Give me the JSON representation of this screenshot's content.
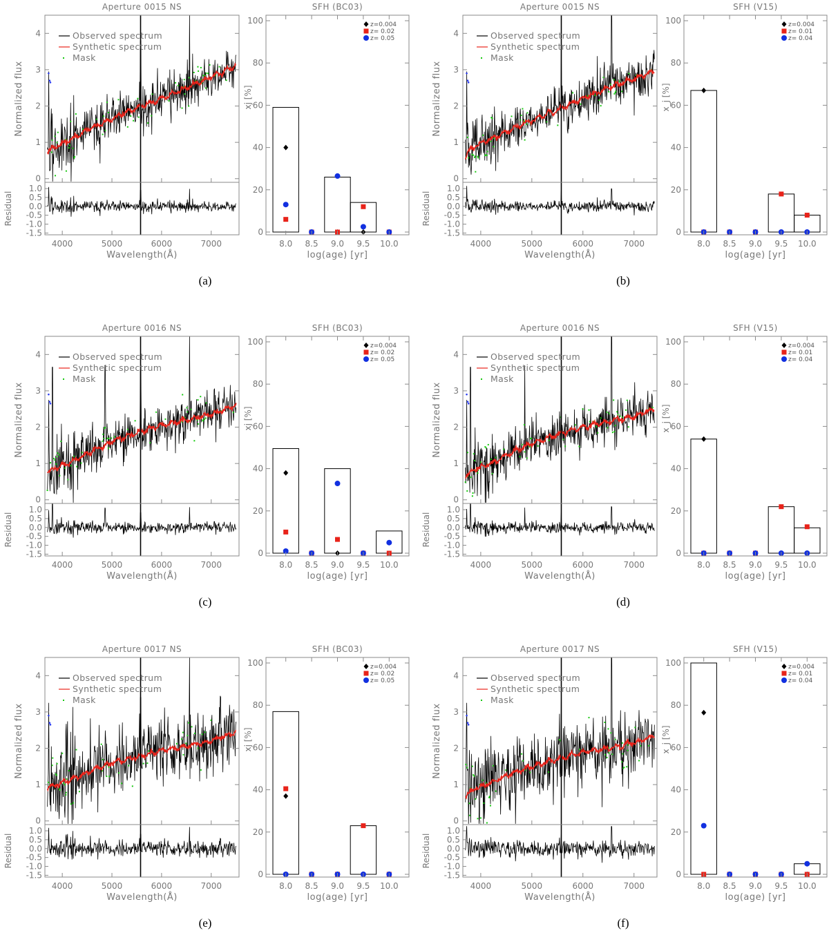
{
  "labels": {
    "flux_ylabel": "Normalized flux",
    "residual_ylabel": "Residual",
    "wavelength_xlabel": "Wavelength(Å)",
    "age_xlabel": "log(age) [yr]",
    "legend_observed": "Observed spectrum",
    "legend_synthetic": "Synthetic spectrum",
    "legend_mask": "Mask"
  },
  "colors": {
    "observed": "#000000",
    "synthetic": "#e8231a",
    "mask": "#16c80e",
    "flagged": "#2b3df0",
    "z1": "#000000",
    "z2": "#e8231a",
    "z3": "#1230e0",
    "axis": "#8a8a8a"
  },
  "panels": [
    {
      "id": "a",
      "caption": "(a)",
      "spectrum_title": "Aperture 0015 NS",
      "sfh_title": "SFH (BC03)",
      "sfh_ylabel": "xj [%]",
      "z_labels": [
        "z=0.004",
        "z= 0.02",
        "z= 0.05"
      ]
    },
    {
      "id": "b",
      "caption": "(b)",
      "spectrum_title": "Aperture 0015 NS",
      "sfh_title": "SFH (V15)",
      "sfh_ylabel": "x_j [%]",
      "z_labels": [
        "z=0.004",
        "z= 0.01",
        "z= 0.04"
      ]
    },
    {
      "id": "c",
      "caption": "(c)",
      "spectrum_title": "Aperture 0016 NS",
      "sfh_title": "SFH (BC03)",
      "sfh_ylabel": "xj [%]",
      "z_labels": [
        "z=0.004",
        "z= 0.02",
        "z= 0.05"
      ]
    },
    {
      "id": "d",
      "caption": "(d)",
      "spectrum_title": "Aperture 0016 NS",
      "sfh_title": "SFH (V15)",
      "sfh_ylabel": "x_j [%]",
      "z_labels": [
        "z=0.004",
        "z= 0.01",
        "z= 0.04"
      ]
    },
    {
      "id": "e",
      "caption": "(e)",
      "spectrum_title": "Aperture 0017 NS",
      "sfh_title": "SFH (BC03)",
      "sfh_ylabel": "xj [%]",
      "z_labels": [
        "z=0.004",
        "z= 0.02",
        "z= 0.05"
      ]
    },
    {
      "id": "f",
      "caption": "(f)",
      "spectrum_title": "Aperture 0017 NS",
      "sfh_title": "SFH (V15)",
      "sfh_ylabel": "x_j [%]",
      "z_labels": [
        "z=0.004",
        "z= 0.01",
        "z= 0.04"
      ]
    }
  ],
  "chart_data": [
    {
      "panel": "a",
      "type": "line",
      "title": "Aperture 0015 NS",
      "xlabel": "Wavelength(Å)",
      "ylabel": "Normalized flux",
      "residual_ylabel": "Residual",
      "xlim": [
        3650,
        7560
      ],
      "ylim": [
        -0.1,
        4.5
      ],
      "residual_ylim": [
        -1.6,
        1.35
      ],
      "x_ticks": [
        4000,
        5000,
        6000,
        7000
      ],
      "y_ticks": [
        0,
        1,
        2,
        3,
        4
      ],
      "residual_ticks": [
        1.0,
        0.5,
        0.0,
        -0.5,
        -1.0,
        -1.5
      ],
      "legend": [
        "Observed spectrum",
        "Synthetic spectrum",
        "Mask"
      ],
      "continuum_x": [
        3700,
        3760,
        3900,
        4200,
        4600,
        5000,
        5500,
        6000,
        6500,
        7000,
        7500
      ],
      "continuum_y": [
        0.75,
        0.8,
        0.9,
        1.1,
        1.4,
        1.65,
        1.95,
        2.2,
        2.5,
        2.8,
        3.1
      ],
      "emission_lines": [
        {
          "x": 3727,
          "y": 2.95
        },
        {
          "x": 5577,
          "y": 3.8
        },
        {
          "x": 6563,
          "y": 4.5
        }
      ],
      "observed_noise": 0.32
    },
    {
      "panel": "a",
      "type": "bar",
      "title": "SFH (BC03)",
      "xlabel": "log(age) [yr]",
      "ylabel": "xj [%]",
      "categories": [
        "8.0",
        "8.5",
        "9.0",
        "9.5",
        "10.0"
      ],
      "ylim": [
        0,
        100
      ],
      "y_ticks": [
        0,
        20,
        40,
        60,
        80,
        100
      ],
      "legend": [
        "z=0.004",
        "z= 0.02",
        "z= 0.05"
      ],
      "values": [
        59,
        0,
        26,
        14,
        0
      ],
      "series": [
        {
          "name": "z=0.004",
          "values": [
            40,
            0,
            0,
            0,
            0
          ]
        },
        {
          "name": "z= 0.02",
          "values": [
            6,
            0,
            0,
            12,
            0
          ]
        },
        {
          "name": "z= 0.05",
          "values": [
            13,
            0,
            26.5,
            2.5,
            0
          ]
        }
      ]
    },
    {
      "panel": "b",
      "type": "line",
      "title": "Aperture 0015 NS",
      "xlabel": "Wavelength(Å)",
      "ylabel": "Normalized flux",
      "residual_ylabel": "Residual",
      "xlim": [
        3650,
        7450
      ],
      "ylim": [
        -0.1,
        4.5
      ],
      "residual_ylim": [
        -1.6,
        1.35
      ],
      "x_ticks": [
        4000,
        5000,
        6000,
        7000
      ],
      "y_ticks": [
        0,
        1,
        2,
        3,
        4
      ],
      "residual_ticks": [
        1.0,
        0.5,
        0.0,
        -0.5,
        -1.0,
        -1.5
      ],
      "legend": [
        "Observed spectrum",
        "Synthetic spectrum",
        "Mask"
      ],
      "continuum_x": [
        3700,
        3760,
        3900,
        4200,
        4600,
        5000,
        5500,
        6000,
        6500,
        7000,
        7400
      ],
      "continuum_y": [
        0.6,
        0.75,
        0.9,
        1.1,
        1.35,
        1.6,
        1.9,
        2.2,
        2.5,
        2.75,
        2.95
      ],
      "emission_lines": [
        {
          "x": 3727,
          "y": 2.95
        },
        {
          "x": 5577,
          "y": 3.8
        },
        {
          "x": 6563,
          "y": 4.5
        }
      ],
      "observed_noise": 0.32
    },
    {
      "panel": "b",
      "type": "bar",
      "title": "SFH (V15)",
      "xlabel": "log(age) [yr]",
      "ylabel": "x_j [%]",
      "categories": [
        "8.0",
        "8.5",
        "9.0",
        "9.5",
        "10.0"
      ],
      "ylim": [
        0,
        100
      ],
      "y_ticks": [
        0,
        20,
        40,
        60,
        80,
        100
      ],
      "legend": [
        "z=0.004",
        "z= 0.01",
        "z= 0.04"
      ],
      "values": [
        67,
        0,
        0,
        18,
        8
      ],
      "series": [
        {
          "name": "z=0.004",
          "values": [
            67,
            0,
            0,
            0,
            0
          ]
        },
        {
          "name": "z= 0.01",
          "values": [
            0,
            0,
            0,
            18,
            8
          ]
        },
        {
          "name": "z= 0.04",
          "values": [
            0,
            0,
            0,
            0,
            0
          ]
        }
      ]
    },
    {
      "panel": "c",
      "type": "line",
      "title": "Aperture 0016 NS",
      "xlabel": "Wavelength(Å)",
      "ylabel": "Normalized flux",
      "residual_ylabel": "Residual",
      "xlim": [
        3650,
        7560
      ],
      "ylim": [
        -0.1,
        4.5
      ],
      "residual_ylim": [
        -1.6,
        1.35
      ],
      "x_ticks": [
        4000,
        5000,
        6000,
        7000
      ],
      "y_ticks": [
        0,
        1,
        2,
        3,
        4
      ],
      "residual_ticks": [
        1.0,
        0.5,
        0.0,
        -0.5,
        -1.0,
        -1.5
      ],
      "legend": [
        "Observed spectrum",
        "Synthetic spectrum",
        "Mask"
      ],
      "continuum_x": [
        3700,
        3760,
        3900,
        4200,
        4600,
        5000,
        5500,
        6000,
        6500,
        7000,
        7500
      ],
      "continuum_y": [
        0.8,
        0.8,
        0.9,
        1.05,
        1.35,
        1.6,
        1.85,
        2.05,
        2.2,
        2.35,
        2.6
      ],
      "emission_lines": [
        {
          "x": 3727,
          "y": 2.75
        },
        {
          "x": 3800,
          "y": 3.65
        },
        {
          "x": 4861,
          "y": 3.7
        },
        {
          "x": 5577,
          "y": 3.55
        },
        {
          "x": 6563,
          "y": 4.5
        }
      ],
      "observed_noise": 0.3
    },
    {
      "panel": "c",
      "type": "bar",
      "title": "SFH (BC03)",
      "xlabel": "log(age) [yr]",
      "ylabel": "xj [%]",
      "categories": [
        "8.0",
        "8.5",
        "9.0",
        "9.5",
        "10.0"
      ],
      "ylim": [
        0,
        100
      ],
      "y_ticks": [
        0,
        20,
        40,
        60,
        80,
        100
      ],
      "legend": [
        "z=0.004",
        "z= 0.02",
        "z= 0.05"
      ],
      "values": [
        49.5,
        0,
        40,
        0,
        10.5
      ],
      "series": [
        {
          "name": "z=0.004",
          "values": [
            38,
            0,
            0,
            0,
            5
          ]
        },
        {
          "name": "z= 0.02",
          "values": [
            10,
            0,
            6.5,
            0,
            0
          ]
        },
        {
          "name": "z= 0.05",
          "values": [
            1,
            0,
            33,
            0,
            5
          ]
        }
      ]
    },
    {
      "panel": "d",
      "type": "line",
      "title": "Aperture 0016 NS",
      "xlabel": "Wavelength(Å)",
      "ylabel": "Normalized flux",
      "residual_ylabel": "Residual",
      "xlim": [
        3650,
        7450
      ],
      "ylim": [
        -0.1,
        4.5
      ],
      "residual_ylim": [
        -1.6,
        1.35
      ],
      "x_ticks": [
        4000,
        5000,
        6000,
        7000
      ],
      "y_ticks": [
        0,
        1,
        2,
        3,
        4
      ],
      "residual_ticks": [
        1.0,
        0.5,
        0.0,
        -0.5,
        -1.0,
        -1.5
      ],
      "legend": [
        "Observed spectrum",
        "Synthetic spectrum",
        "Mask"
      ],
      "continuum_x": [
        3700,
        3760,
        3900,
        4200,
        4600,
        5000,
        5500,
        6000,
        6500,
        7000,
        7400
      ],
      "continuum_y": [
        0.65,
        0.7,
        0.85,
        1.0,
        1.3,
        1.55,
        1.8,
        2.0,
        2.15,
        2.3,
        2.5
      ],
      "emission_lines": [
        {
          "x": 3727,
          "y": 2.75
        },
        {
          "x": 3800,
          "y": 3.65
        },
        {
          "x": 4861,
          "y": 3.7
        },
        {
          "x": 5577,
          "y": 3.55
        },
        {
          "x": 6563,
          "y": 4.5
        }
      ],
      "observed_noise": 0.3
    },
    {
      "panel": "d",
      "type": "bar",
      "title": "SFH (V15)",
      "xlabel": "log(age) [yr]",
      "ylabel": "x_j [%]",
      "categories": [
        "8.0",
        "8.5",
        "9.0",
        "9.5",
        "10.0"
      ],
      "ylim": [
        0,
        100
      ],
      "y_ticks": [
        0,
        20,
        40,
        60,
        80,
        100
      ],
      "legend": [
        "z=0.004",
        "z= 0.01",
        "z= 0.04"
      ],
      "values": [
        54,
        0,
        0,
        22,
        12
      ],
      "series": [
        {
          "name": "z=0.004",
          "values": [
            54,
            0,
            0,
            0,
            0
          ]
        },
        {
          "name": "z= 0.01",
          "values": [
            0,
            0,
            0,
            22,
            12.5
          ]
        },
        {
          "name": "z= 0.04",
          "values": [
            0,
            0,
            0,
            0,
            0
          ]
        }
      ]
    },
    {
      "panel": "e",
      "type": "line",
      "title": "Aperture 0017 NS",
      "xlabel": "Wavelength(Å)",
      "ylabel": "Normalized flux",
      "residual_ylabel": "Residual",
      "xlim": [
        3650,
        7560
      ],
      "ylim": [
        -0.1,
        4.5
      ],
      "residual_ylim": [
        -1.6,
        1.35
      ],
      "x_ticks": [
        4000,
        5000,
        6000,
        7000
      ],
      "y_ticks": [
        0,
        1,
        2,
        3,
        4
      ],
      "residual_ticks": [
        1.0,
        0.5,
        0.0,
        -0.5,
        -1.0,
        -1.5
      ],
      "legend": [
        "Observed spectrum",
        "Synthetic spectrum",
        "Mask"
      ],
      "continuum_x": [
        3700,
        3760,
        3900,
        4200,
        4600,
        5000,
        5500,
        6000,
        6500,
        7000,
        7500
      ],
      "continuum_y": [
        0.9,
        0.95,
        1.0,
        1.15,
        1.4,
        1.6,
        1.75,
        1.95,
        2.05,
        2.2,
        2.45
      ],
      "emission_lines": [
        {
          "x": 3727,
          "y": 3.25
        },
        {
          "x": 5577,
          "y": 3.4
        },
        {
          "x": 6563,
          "y": 4.5
        }
      ],
      "observed_noise": 0.45
    },
    {
      "panel": "e",
      "type": "bar",
      "title": "SFH (BC03)",
      "xlabel": "log(age) [yr]",
      "ylabel": "xj [%]",
      "categories": [
        "8.0",
        "8.5",
        "9.0",
        "9.5",
        "10.0"
      ],
      "ylim": [
        0,
        100
      ],
      "y_ticks": [
        0,
        20,
        40,
        60,
        80,
        100
      ],
      "legend": [
        "z=0.004",
        "z= 0.02",
        "z= 0.05"
      ],
      "values": [
        77,
        0,
        0,
        23,
        0
      ],
      "series": [
        {
          "name": "z=0.004",
          "values": [
            37,
            0,
            0,
            0,
            0
          ]
        },
        {
          "name": "z= 0.02",
          "values": [
            40.5,
            0,
            0,
            23,
            0
          ]
        },
        {
          "name": "z= 0.05",
          "values": [
            0,
            0,
            0,
            0,
            0
          ]
        }
      ]
    },
    {
      "panel": "f",
      "type": "line",
      "title": "Aperture 0017 NS",
      "xlabel": "Wavelength(Å)",
      "ylabel": "Normalized flux",
      "residual_ylabel": "Residual",
      "xlim": [
        3650,
        7450
      ],
      "ylim": [
        -0.1,
        4.5
      ],
      "residual_ylim": [
        -1.6,
        1.35
      ],
      "x_ticks": [
        4000,
        5000,
        6000,
        7000
      ],
      "y_ticks": [
        0,
        1,
        2,
        3,
        4
      ],
      "residual_ticks": [
        1.0,
        0.5,
        0.0,
        -0.5,
        -1.0,
        -1.5
      ],
      "legend": [
        "Observed spectrum",
        "Synthetic spectrum",
        "Mask"
      ],
      "continuum_x": [
        3700,
        3760,
        3900,
        4200,
        4600,
        5000,
        5500,
        6000,
        6500,
        7000,
        7400
      ],
      "continuum_y": [
        0.7,
        0.75,
        0.9,
        1.05,
        1.3,
        1.5,
        1.7,
        1.9,
        2.0,
        2.15,
        2.35
      ],
      "emission_lines": [
        {
          "x": 3727,
          "y": 3.25
        },
        {
          "x": 5577,
          "y": 3.4
        },
        {
          "x": 6563,
          "y": 4.5
        }
      ],
      "observed_noise": 0.45
    },
    {
      "panel": "f",
      "type": "bar",
      "title": "SFH (V15)",
      "xlabel": "log(age) [yr]",
      "ylabel": "x_j [%]",
      "categories": [
        "8.0",
        "8.5",
        "9.0",
        "9.5",
        "10.0"
      ],
      "ylim": [
        0,
        100
      ],
      "y_ticks": [
        0,
        20,
        40,
        60,
        80,
        100
      ],
      "legend": [
        "z=0.004",
        "z= 0.01",
        "z= 0.04"
      ],
      "values": [
        100,
        0,
        0,
        0,
        5
      ],
      "series": [
        {
          "name": "z=0.004",
          "values": [
            76.5,
            0,
            0,
            0,
            0
          ]
        },
        {
          "name": "z= 0.01",
          "values": [
            0,
            0,
            0,
            0,
            0
          ]
        },
        {
          "name": "z= 0.04",
          "values": [
            23,
            0,
            0,
            0,
            5
          ]
        }
      ]
    }
  ]
}
